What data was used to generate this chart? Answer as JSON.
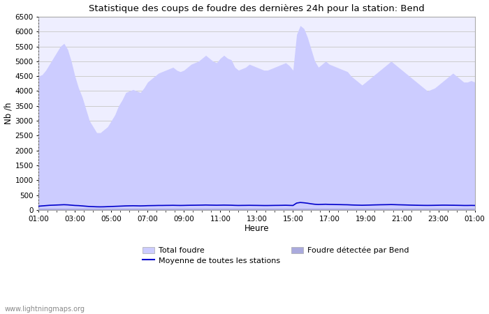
{
  "title": "Statistique des coups de foudre des dernières 24h pour la station: Bend",
  "xlabel": "Heure",
  "ylabel": "Nb /h",
  "watermark": "www.lightningmaps.org",
  "x_ticks": [
    "01:00",
    "03:00",
    "05:00",
    "07:00",
    "09:00",
    "11:00",
    "13:00",
    "15:00",
    "17:00",
    "19:00",
    "21:00",
    "23:00",
    "01:00"
  ],
  "ylim": [
    0,
    6500
  ],
  "y_ticks": [
    0,
    500,
    1000,
    1500,
    2000,
    2500,
    3000,
    3500,
    4000,
    4500,
    5000,
    5500,
    6000,
    6500
  ],
  "bg_color": "#ffffff",
  "plot_bg_color": "#eeeeff",
  "grid_color": "#cccccc",
  "total_foudre_color": "#ccccff",
  "bend_color": "#aaaadd",
  "mean_line_color": "#0000cc",
  "legend_labels": [
    "Total foudre",
    "Moyenne de toutes les stations",
    "Foudre détectée par Bend"
  ],
  "total_foudre": [
    4500,
    4550,
    4700,
    4900,
    5100,
    5300,
    5500,
    5600,
    5400,
    5000,
    4500,
    4100,
    3800,
    3400,
    3000,
    2800,
    2600,
    2600,
    2700,
    2800,
    3000,
    3200,
    3500,
    3700,
    3950,
    4000,
    4050,
    4000,
    3950,
    4100,
    4300,
    4400,
    4500,
    4600,
    4650,
    4700,
    4750,
    4800,
    4700,
    4650,
    4700,
    4800,
    4900,
    4950,
    5000,
    5100,
    5200,
    5100,
    5000,
    4950,
    5100,
    5200,
    5100,
    5050,
    4800,
    4700,
    4750,
    4800,
    4900,
    4850,
    4800,
    4750,
    4700,
    4700,
    4750,
    4800,
    4850,
    4900,
    4950,
    4850,
    4700,
    5900,
    6200,
    6100,
    5800,
    5400,
    5000,
    4800,
    4900,
    5000,
    4900,
    4850,
    4800,
    4750,
    4700,
    4650,
    4500,
    4400,
    4300,
    4200,
    4300,
    4400,
    4500,
    4600,
    4700,
    4800,
    4900,
    5000,
    4900,
    4800,
    4700,
    4600,
    4500,
    4400,
    4300,
    4200,
    4100,
    4000,
    4050,
    4100,
    4200,
    4300,
    4400,
    4500,
    4600,
    4500,
    4400,
    4300,
    4300,
    4350,
    4300
  ],
  "bend_detected": [
    50,
    50,
    50,
    50,
    50,
    50,
    50,
    50,
    50,
    50,
    50,
    50,
    50,
    50,
    50,
    50,
    50,
    50,
    50,
    50,
    50,
    50,
    50,
    50,
    50,
    50,
    50,
    50,
    50,
    50,
    50,
    50,
    50,
    50,
    50,
    50,
    50,
    50,
    50,
    50,
    50,
    50,
    50,
    50,
    50,
    50,
    50,
    50,
    50,
    50,
    50,
    50,
    50,
    50,
    50,
    50,
    50,
    50,
    50,
    50,
    50,
    50,
    50,
    50,
    50,
    50,
    50,
    50,
    50,
    50,
    50,
    50,
    50,
    50,
    50,
    50,
    50,
    50,
    50,
    50,
    50,
    50,
    50,
    50,
    50,
    50,
    50,
    50,
    50,
    50,
    50,
    50,
    50,
    50,
    50,
    50,
    50,
    50,
    50,
    50,
    50,
    50,
    50,
    50,
    50,
    50,
    50,
    50,
    50,
    50,
    50
  ],
  "mean_line": [
    130,
    140,
    150,
    160,
    165,
    170,
    175,
    180,
    175,
    165,
    155,
    150,
    140,
    130,
    120,
    115,
    110,
    108,
    110,
    115,
    120,
    125,
    130,
    135,
    140,
    143,
    145,
    143,
    140,
    143,
    148,
    150,
    152,
    155,
    155,
    157,
    158,
    160,
    157,
    155,
    157,
    160,
    162,
    163,
    165,
    167,
    170,
    167,
    165,
    163,
    165,
    167,
    165,
    163,
    158,
    155,
    157,
    158,
    160,
    158,
    157,
    155,
    153,
    153,
    155,
    157,
    158,
    160,
    162,
    158,
    155,
    235,
    255,
    245,
    230,
    210,
    195,
    188,
    192,
    195,
    190,
    188,
    185,
    183,
    180,
    178,
    172,
    168,
    165,
    162,
    165,
    168,
    172,
    175,
    178,
    180,
    182,
    185,
    182,
    178,
    175,
    172,
    168,
    165,
    162,
    160,
    158,
    157,
    158,
    160,
    162,
    165,
    165,
    163,
    162,
    160,
    158,
    155,
    155,
    157,
    155
  ]
}
